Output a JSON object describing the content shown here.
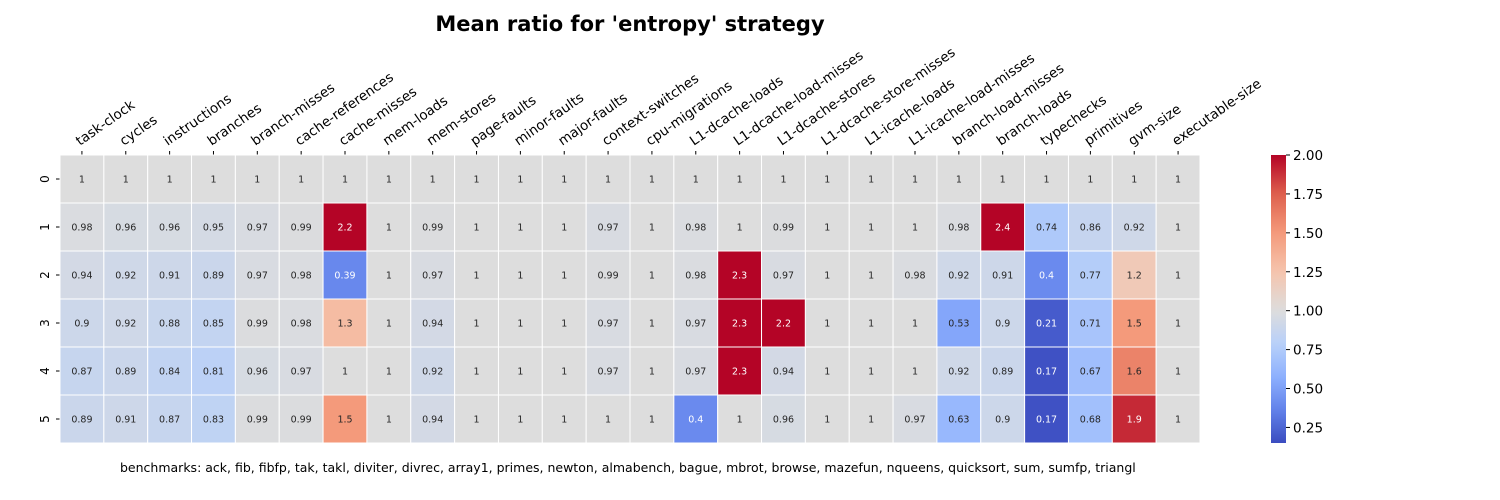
{
  "chart_data": {
    "type": "heatmap",
    "title": "Mean ratio for 'entropy' strategy",
    "columns": [
      "task-clock",
      "cycles",
      "instructions",
      "branches",
      "branch-misses",
      "cache-references",
      "cache-misses",
      "mem-loads",
      "mem-stores",
      "page-faults",
      "minor-faults",
      "major-faults",
      "context-switches",
      "cpu-migrations",
      "L1-dcache-loads",
      "L1-dcache-load-misses",
      "L1-dcache-stores",
      "L1-dcache-store-misses",
      "L1-icache-loads",
      "L1-icache-load-misses",
      "branch-load-misses",
      "branch-loads",
      "typechecks",
      "primitives",
      "gvm-size",
      "executable-size"
    ],
    "rows": [
      "0",
      "1",
      "2",
      "3",
      "4",
      "5"
    ],
    "values": [
      [
        1,
        1,
        1,
        1,
        1,
        1,
        1,
        1,
        1,
        1,
        1,
        1,
        1,
        1,
        1,
        1,
        1,
        1,
        1,
        1,
        1,
        1,
        1,
        1,
        1,
        1
      ],
      [
        0.98,
        0.96,
        0.96,
        0.95,
        0.97,
        0.99,
        2.2,
        1,
        0.99,
        1,
        1,
        1,
        0.97,
        1,
        0.98,
        1,
        0.99,
        1,
        1,
        1,
        0.98,
        2.4,
        0.74,
        0.86,
        0.92,
        1
      ],
      [
        0.94,
        0.92,
        0.91,
        0.89,
        0.97,
        0.98,
        0.39,
        1,
        0.97,
        1,
        1,
        1,
        0.99,
        1,
        0.98,
        2.3,
        0.97,
        1,
        1,
        0.98,
        0.92,
        0.91,
        0.4,
        0.77,
        1.2,
        1
      ],
      [
        0.9,
        0.92,
        0.88,
        0.85,
        0.99,
        0.98,
        1.3,
        1,
        0.94,
        1,
        1,
        1,
        0.97,
        1,
        0.97,
        2.3,
        2.2,
        1,
        1,
        1,
        0.53,
        0.9,
        0.21,
        0.71,
        1.5,
        1
      ],
      [
        0.87,
        0.89,
        0.84,
        0.81,
        0.96,
        0.97,
        1,
        1,
        0.92,
        1,
        1,
        1,
        0.97,
        1,
        0.97,
        2.3,
        0.94,
        1,
        1,
        1,
        0.92,
        0.89,
        0.17,
        0.67,
        1.6,
        1
      ],
      [
        0.89,
        0.91,
        0.87,
        0.83,
        0.99,
        0.99,
        1.5,
        1,
        0.94,
        1,
        1,
        1,
        1,
        1,
        0.4,
        1,
        0.96,
        1,
        1,
        0.97,
        0.63,
        0.9,
        0.17,
        0.68,
        1.9,
        1
      ]
    ],
    "color_scale": {
      "name": "coolwarm",
      "vmin": 0.15,
      "vmax": 2.0,
      "center": 1.0
    },
    "colorbar_ticks": [
      0.25,
      0.5,
      0.75,
      1.0,
      1.25,
      1.5,
      1.75,
      2.0
    ],
    "colorbar_tick_labels": [
      "0.25",
      "0.50",
      "0.75",
      "1.00",
      "1.25",
      "1.50",
      "1.75",
      "2.00"
    ]
  },
  "footnote": "benchmarks: ack, fib, fibfp, tak, takl, diviter, divrec, array1, primes, newton, almabench, bague, mbrot, browse, mazefun, nqueens, quicksort, sum, sumfp, triangl"
}
